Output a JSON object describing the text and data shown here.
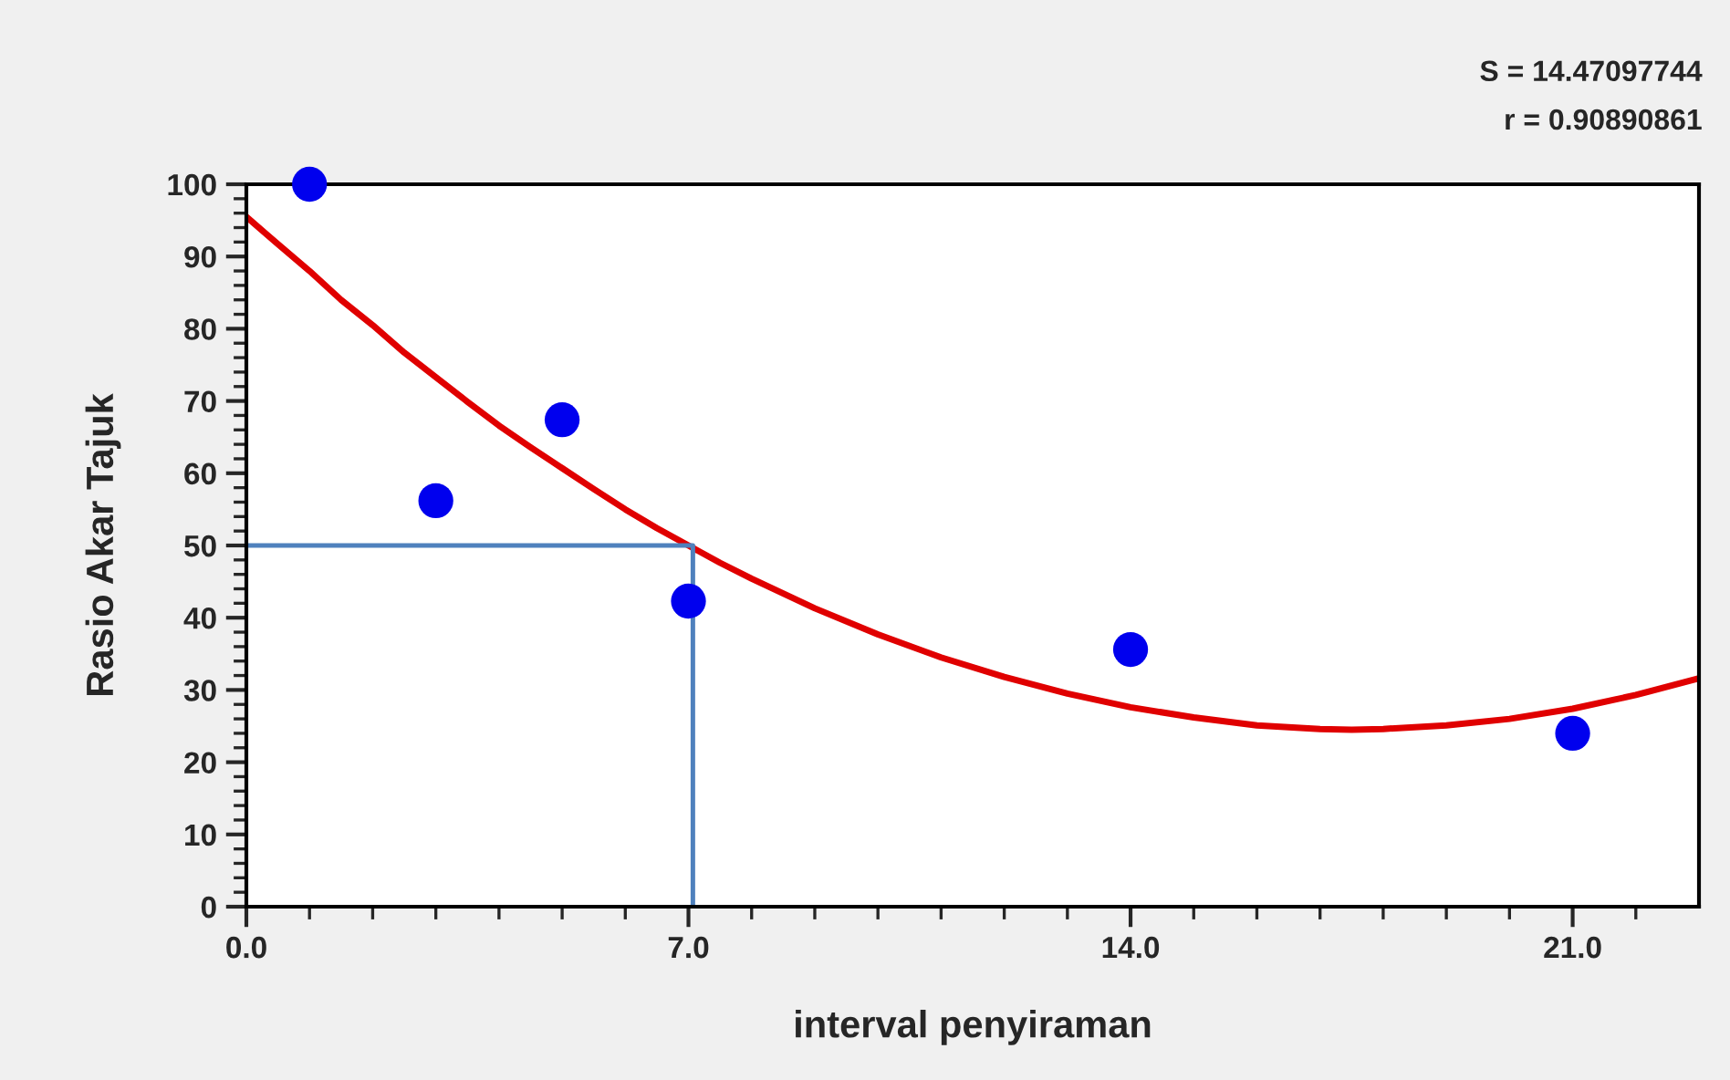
{
  "chart_data": {
    "type": "line",
    "xlabel": "interval penyiraman",
    "ylabel": "Rasio Akar Tajuk",
    "annotations": [
      "S = 14.47097744",
      "r = 0.90890861"
    ],
    "series": [
      {
        "color": "#e00000",
        "marker": "none",
        "x": [
          0,
          0.5,
          1,
          1.5,
          2,
          2.5,
          3,
          3.5,
          4,
          4.5,
          5,
          5.5,
          6,
          6.5,
          7,
          7.5,
          8,
          9,
          10,
          11,
          12,
          13,
          14,
          15,
          16,
          17,
          17.5,
          18,
          19,
          20,
          21,
          22,
          23
        ],
        "values": [
          95.5,
          91.7,
          88,
          84,
          80.5,
          76.7,
          73.3,
          69.9,
          66.6,
          63.6,
          60.7,
          57.8,
          55,
          52.4,
          50,
          47.6,
          45.4,
          41.3,
          37.7,
          34.5,
          31.8,
          29.5,
          27.6,
          26.2,
          25.1,
          24.6,
          24.5,
          24.6,
          25.1,
          26,
          27.4,
          29.3,
          31.6
        ]
      },
      {
        "color": "#4f81bd",
        "marker": "none",
        "x": [
          0,
          7.07,
          7.07
        ],
        "values": [
          50,
          50,
          0
        ]
      },
      {
        "type": "scatter",
        "marker": "circle",
        "color": "#0000ee",
        "x": [
          1,
          3,
          5,
          7,
          14,
          21
        ],
        "values": [
          100,
          56.2,
          67.4,
          42.3,
          35.6,
          24
        ]
      }
    ],
    "xlim": [
      0,
      23
    ],
    "xticks": [
      {
        "value": 0,
        "label": "0.0"
      },
      {
        "value": 1,
        "label": null
      },
      {
        "value": 2,
        "label": null
      },
      {
        "value": 3,
        "label": null
      },
      {
        "value": 4,
        "label": null
      },
      {
        "value": 5,
        "label": null
      },
      {
        "value": 6,
        "label": null
      },
      {
        "value": 7,
        "label": "7.0"
      },
      {
        "value": 8,
        "label": null
      },
      {
        "value": 9,
        "label": null
      },
      {
        "value": 10,
        "label": null
      },
      {
        "value": 11,
        "label": null
      },
      {
        "value": 12,
        "label": null
      },
      {
        "value": 13,
        "label": null
      },
      {
        "value": 14,
        "label": "14.0"
      },
      {
        "value": 15,
        "label": null
      },
      {
        "value": 16,
        "label": null
      },
      {
        "value": 17,
        "label": null
      },
      {
        "value": 18,
        "label": null
      },
      {
        "value": 19,
        "label": null
      },
      {
        "value": 20,
        "label": null
      },
      {
        "value": 21,
        "label": "21.0"
      },
      {
        "value": 22,
        "label": null
      }
    ],
    "ylim": [
      0,
      100
    ],
    "yticks": [
      0,
      {
        "value": 2,
        "label": null
      },
      {
        "value": 4,
        "label": null
      },
      {
        "value": 6,
        "label": null
      },
      {
        "value": 8,
        "label": null
      },
      10,
      {
        "value": 12,
        "label": null
      },
      {
        "value": 14,
        "label": null
      },
      {
        "value": 16,
        "label": null
      },
      {
        "value": 18,
        "label": null
      },
      20,
      {
        "value": 22,
        "label": null
      },
      {
        "value": 24,
        "label": null
      },
      {
        "value": 26,
        "label": null
      },
      {
        "value": 28,
        "label": null
      },
      30,
      {
        "value": 32,
        "label": null
      },
      {
        "value": 34,
        "label": null
      },
      {
        "value": 36,
        "label": null
      },
      {
        "value": 38,
        "label": null
      },
      40,
      {
        "value": 42,
        "label": null
      },
      {
        "value": 44,
        "label": null
      },
      {
        "value": 46,
        "label": null
      },
      {
        "value": 48,
        "label": null
      },
      50,
      {
        "value": 52,
        "label": null
      },
      {
        "value": 54,
        "label": null
      },
      {
        "value": 56,
        "label": null
      },
      {
        "value": 58,
        "label": null
      },
      60,
      {
        "value": 62,
        "label": null
      },
      {
        "value": 64,
        "label": null
      },
      {
        "value": 66,
        "label": null
      },
      {
        "value": 68,
        "label": null
      },
      70,
      {
        "value": 72,
        "label": null
      },
      {
        "value": 74,
        "label": null
      },
      {
        "value": 76,
        "label": null
      },
      {
        "value": 78,
        "label": null
      },
      80,
      {
        "value": 82,
        "label": null
      },
      {
        "value": 84,
        "label": null
      },
      {
        "value": 86,
        "label": null
      },
      {
        "value": 88,
        "label": null
      },
      90,
      {
        "value": 92,
        "label": null
      },
      {
        "value": 94,
        "label": null
      },
      {
        "value": 96,
        "label": null
      },
      {
        "value": 98,
        "label": null
      },
      100
    ],
    "grid": false,
    "legend": false
  }
}
